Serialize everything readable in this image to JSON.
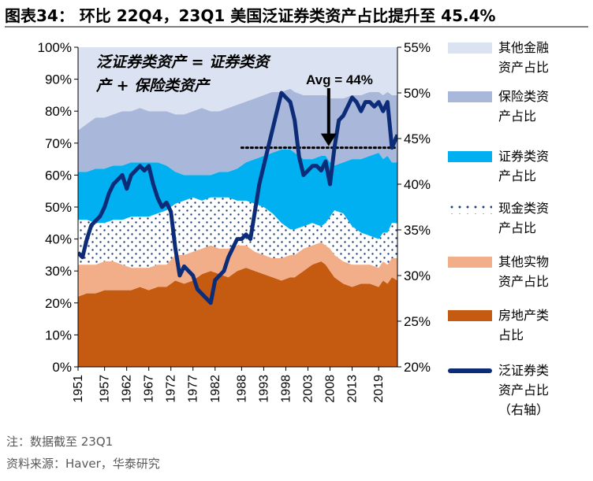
{
  "title": "图表34： 环比 22Q4，23Q1 美国泛证券类资产占比提升至 45.4%",
  "note": "注：数据截至 23Q1",
  "source": "资料来源：Haver，华泰研究",
  "annotations": {
    "definition": "泛证券类资产 = 证券类资\n产 + 保险类资产",
    "avg_label": "Avg = 44%"
  },
  "colors": {
    "other_financial": "#dbe2f1",
    "insurance": "#a8b7da",
    "securities": "#00b0f0",
    "cash_dots": "#1f3f7f",
    "other_physical": "#f2ae88",
    "real_estate": "#c55a11",
    "pan_securities_line": "#0d2c78"
  },
  "legend": [
    {
      "key": "other_financial",
      "label": "其他金融\n资产占比",
      "style": "fill"
    },
    {
      "key": "insurance",
      "label": "保险类资\n产占比",
      "style": "fill"
    },
    {
      "key": "securities",
      "label": "证券类资\n产占比",
      "style": "fill"
    },
    {
      "key": "cash_dots",
      "label": "现金类资\n产占比",
      "style": "dots"
    },
    {
      "key": "other_physical",
      "label": "其他实物\n资产占比",
      "style": "fill"
    },
    {
      "key": "real_estate",
      "label": "房地产类\n占比",
      "style": "fill"
    },
    {
      "key": "pan_securities_line",
      "label": "泛证券类\n资产占比\n（右轴）",
      "style": "line"
    }
  ],
  "chart_data": {
    "type": "area",
    "x_label": "",
    "y_label": "",
    "x_ticks": [
      "1951",
      "1957",
      "1962",
      "1967",
      "1972",
      "1977",
      "1982",
      "1988",
      "1993",
      "1998",
      "2003",
      "2008",
      "2013",
      "2019"
    ],
    "x_range": [
      1951,
      2023.25
    ],
    "y_left": {
      "range": [
        0,
        100
      ],
      "ticks": [
        "0%",
        "10%",
        "20%",
        "30%",
        "40%",
        "50%",
        "60%",
        "70%",
        "80%",
        "90%",
        "100%"
      ]
    },
    "y_right": {
      "range": [
        20,
        55
      ],
      "ticks": [
        "20%",
        "25%",
        "30%",
        "35%",
        "40%",
        "45%",
        "50%",
        "55%"
      ]
    },
    "average_line": {
      "value": 44,
      "axis": "right",
      "from": 1988,
      "to": 2023.25
    },
    "x": [
      1951,
      1953,
      1955,
      1957,
      1959,
      1961,
      1963,
      1965,
      1967,
      1969,
      1971,
      1973,
      1975,
      1977,
      1979,
      1981,
      1983,
      1985,
      1987,
      1989,
      1991,
      1993,
      1995,
      1997,
      1999,
      2000,
      2002,
      2004,
      2006,
      2007,
      2008,
      2009,
      2011,
      2013,
      2015,
      2017,
      2019,
      2020,
      2021,
      2022,
      2023.25
    ],
    "series": [
      {
        "name": "房地产类占比",
        "key": "real_estate",
        "values": [
          22,
          23,
          23,
          24,
          24,
          24,
          24,
          25,
          24,
          25,
          25,
          27,
          26,
          27,
          29,
          30,
          29,
          28,
          30,
          31,
          30,
          29,
          28,
          27,
          28,
          28,
          30,
          32,
          33,
          32,
          30,
          28,
          26,
          25,
          26,
          26,
          25,
          27,
          26,
          28,
          27
        ]
      },
      {
        "name": "其他实物资产占比",
        "key": "other_physical",
        "values": [
          32,
          32,
          32,
          33,
          33,
          32,
          31,
          31,
          31,
          32,
          32,
          35,
          35,
          36,
          37,
          38,
          37,
          37,
          38,
          38,
          36,
          35,
          34,
          34,
          35,
          35,
          37,
          38,
          39,
          38,
          37,
          35,
          33,
          32,
          32,
          32,
          31,
          33,
          32,
          34,
          34
        ]
      },
      {
        "name": "现金类资产占比",
        "key": "cash_dots",
        "values": [
          46,
          46,
          45,
          45,
          46,
          46,
          47,
          47,
          47,
          48,
          49,
          51,
          52,
          53,
          52,
          53,
          53,
          53,
          52,
          52,
          51,
          50,
          48,
          45,
          43,
          43,
          44,
          45,
          44,
          45,
          47,
          49,
          48,
          44,
          42,
          41,
          40,
          42,
          42,
          45,
          45
        ]
      },
      {
        "name": "证券类资产占比",
        "key": "securities",
        "values": [
          61,
          61,
          62,
          62,
          63,
          63,
          64,
          64,
          64,
          64,
          63,
          61,
          60,
          60,
          60,
          60,
          61,
          61,
          62,
          64,
          65,
          66,
          67,
          68,
          68,
          67,
          65,
          65,
          66,
          66,
          64,
          63,
          64,
          65,
          65,
          66,
          67,
          65,
          66,
          64,
          64
        ]
      },
      {
        "name": "保险类资产占比",
        "key": "insurance",
        "values": [
          74,
          76,
          78,
          78,
          79,
          80,
          80,
          81,
          80,
          80,
          80,
          79,
          79,
          80,
          81,
          80,
          80,
          81,
          82,
          83,
          84,
          85,
          86,
          86,
          87,
          86,
          85,
          85,
          85,
          85,
          84,
          84,
          84,
          85,
          85,
          86,
          86,
          85,
          86,
          85,
          85
        ]
      },
      {
        "name": "其他金融资产占比",
        "key": "other_financial",
        "values": [
          100,
          100,
          100,
          100,
          100,
          100,
          100,
          100,
          100,
          100,
          100,
          100,
          100,
          100,
          100,
          100,
          100,
          100,
          100,
          100,
          100,
          100,
          100,
          100,
          100,
          100,
          100,
          100,
          100,
          100,
          100,
          100,
          100,
          100,
          100,
          100,
          100,
          100,
          100,
          100,
          100
        ]
      },
      {
        "name": "泛证券类资产占比（右轴）",
        "key": "pan_securities_line",
        "axis": "right",
        "x": [
          1951,
          1952,
          1953,
          1954,
          1955,
          1956,
          1957,
          1958,
          1959,
          1960,
          1961,
          1962,
          1963,
          1964,
          1965,
          1966,
          1967,
          1968,
          1969,
          1970,
          1971,
          1972,
          1973,
          1974,
          1975,
          1976,
          1977,
          1978,
          1979,
          1980,
          1981,
          1982,
          1983,
          1984,
          1985,
          1986,
          1987,
          1988,
          1989,
          1990,
          1991,
          1992,
          1993,
          1994,
          1995,
          1996,
          1997,
          1998,
          1999,
          2000,
          2001,
          2002,
          2003,
          2004,
          2005,
          2006,
          2007,
          2008,
          2009,
          2010,
          2011,
          2012,
          2013,
          2014,
          2015,
          2016,
          2017,
          2018,
          2019,
          2020,
          2021,
          2022,
          2023.25
        ],
        "values": [
          32.5,
          32.0,
          34.0,
          35.5,
          36.0,
          36.5,
          37.5,
          39.0,
          40.0,
          40.5,
          41.0,
          39.5,
          41.0,
          41.5,
          42.0,
          41.5,
          42.0,
          40.0,
          38.5,
          37.5,
          38.0,
          37.0,
          33.0,
          30.0,
          31.0,
          30.5,
          30.0,
          28.5,
          28.0,
          27.5,
          27.0,
          29.5,
          30.0,
          30.5,
          32.0,
          33.0,
          34.0,
          34.0,
          34.5,
          34.0,
          37.0,
          40.0,
          42.0,
          44.0,
          46.0,
          48.0,
          50.0,
          49.5,
          49.0,
          47.0,
          43.0,
          41.0,
          41.5,
          42.0,
          42.0,
          41.5,
          42.5,
          40.0,
          44.0,
          47.0,
          47.5,
          48.5,
          49.5,
          49.0,
          48.0,
          49.0,
          49.0,
          48.5,
          49.0,
          48.0,
          49.0,
          44.0,
          45.4
        ]
      }
    ]
  }
}
